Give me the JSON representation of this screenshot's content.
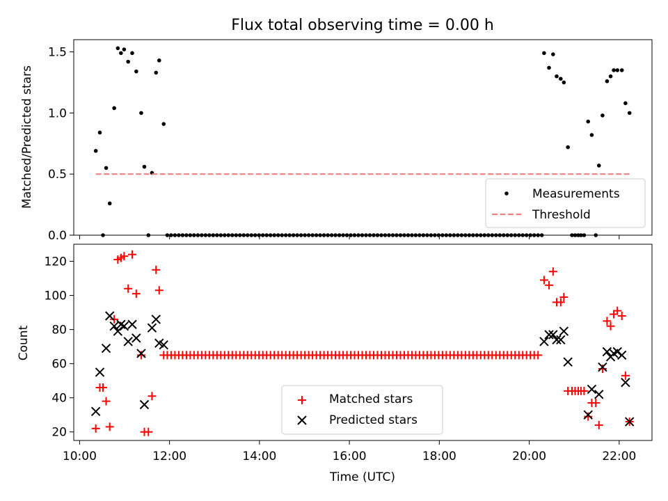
{
  "title": "Flux total observing time = 0.00 h",
  "x_axis": {
    "label": "Time (UTC)",
    "ticks": [
      {
        "hour": 10,
        "label": "10:00"
      },
      {
        "hour": 12,
        "label": "12:00"
      },
      {
        "hour": 14,
        "label": "14:00"
      },
      {
        "hour": 16,
        "label": "16:00"
      },
      {
        "hour": 18,
        "label": "18:00"
      },
      {
        "hour": 20,
        "label": "20:00"
      },
      {
        "hour": 22,
        "label": "22:00"
      }
    ]
  },
  "chart_data": [
    {
      "type": "scatter",
      "ylabel": "Matched/Predicted stars",
      "xlim_hours": [
        9.87,
        22.73
      ],
      "ylim": [
        0,
        1.6
      ],
      "yticks": [
        {
          "value": 0.0,
          "label": "0.0"
        },
        {
          "value": 0.5,
          "label": "0.5"
        },
        {
          "value": 1.0,
          "label": "1.0"
        },
        {
          "value": 1.5,
          "label": "1.5"
        }
      ],
      "legend": {
        "placement": "lower-right",
        "entries": [
          "Measurements",
          "Threshold"
        ]
      },
      "series": [
        {
          "name": "Measurements",
          "marker": "dot",
          "color": "#000000",
          "points": [
            [
              10.36,
              0.69
            ],
            [
              10.45,
              0.84
            ],
            [
              10.52,
              0.0
            ],
            [
              10.59,
              0.55
            ],
            [
              10.67,
              0.26
            ],
            [
              10.77,
              1.04
            ],
            [
              10.85,
              1.53
            ],
            [
              10.92,
              1.49
            ],
            [
              10.99,
              1.52
            ],
            [
              11.08,
              1.42
            ],
            [
              11.17,
              1.49
            ],
            [
              11.26,
              1.34
            ],
            [
              11.37,
              1.0
            ],
            [
              11.44,
              0.56
            ],
            [
              11.53,
              0.0
            ],
            [
              11.61,
              0.51
            ],
            [
              11.7,
              1.33
            ],
            [
              11.77,
              1.43
            ],
            [
              11.87,
              0.91
            ],
            [
              20.33,
              1.49
            ],
            [
              20.44,
              1.37
            ],
            [
              20.53,
              1.48
            ],
            [
              20.61,
              1.3
            ],
            [
              20.7,
              1.28
            ],
            [
              20.77,
              1.25
            ],
            [
              20.86,
              0.72
            ],
            [
              21.31,
              0.93
            ],
            [
              21.39,
              0.82
            ],
            [
              21.55,
              0.57
            ],
            [
              21.63,
              0.98
            ],
            [
              21.73,
              1.26
            ],
            [
              21.81,
              1.3
            ],
            [
              21.88,
              1.35
            ],
            [
              21.96,
              1.35
            ],
            [
              22.06,
              1.35
            ],
            [
              22.14,
              1.08
            ],
            [
              22.23,
              1.0
            ]
          ],
          "zero_span_hours": [
            11.95,
            20.35
          ],
          "zero_step_hours": 0.085,
          "zero_extra_hours": [
            20.95,
            21.02,
            21.09,
            21.15,
            21.22,
            21.48
          ]
        },
        {
          "name": "Threshold",
          "style": "dashed",
          "color": "#f08080",
          "x_range_hours": [
            10.36,
            22.23
          ],
          "value": 0.5
        }
      ]
    },
    {
      "type": "scatter",
      "ylabel": "Count",
      "xlim_hours": [
        9.87,
        22.73
      ],
      "ylim": [
        15,
        130
      ],
      "yticks": [
        {
          "value": 20,
          "label": "20"
        },
        {
          "value": 40,
          "label": "40"
        },
        {
          "value": 60,
          "label": "60"
        },
        {
          "value": 80,
          "label": "80"
        },
        {
          "value": 100,
          "label": "100"
        },
        {
          "value": 120,
          "label": "120"
        }
      ],
      "legend": {
        "placement": "lower-center",
        "entries": [
          "Matched stars",
          "Predicted stars"
        ]
      },
      "series": [
        {
          "name": "Matched stars",
          "marker": "plus",
          "color": "#ff0000",
          "points": [
            [
              10.36,
              22
            ],
            [
              10.45,
              46
            ],
            [
              10.52,
              46
            ],
            [
              10.59,
              38
            ],
            [
              10.67,
              23
            ],
            [
              10.77,
              86
            ],
            [
              10.85,
              121
            ],
            [
              10.92,
              122
            ],
            [
              10.99,
              123
            ],
            [
              11.08,
              104
            ],
            [
              11.17,
              124
            ],
            [
              11.26,
              101
            ],
            [
              11.37,
              65
            ],
            [
              11.44,
              20
            ],
            [
              11.53,
              20
            ],
            [
              11.61,
              41
            ],
            [
              11.7,
              115
            ],
            [
              11.77,
              103
            ],
            [
              11.87,
              65
            ],
            [
              20.33,
              109
            ],
            [
              20.44,
              106
            ],
            [
              20.53,
              114
            ],
            [
              20.61,
              96
            ],
            [
              20.7,
              96
            ],
            [
              20.77,
              99
            ],
            [
              20.86,
              44
            ],
            [
              20.95,
              44
            ],
            [
              21.02,
              44
            ],
            [
              21.09,
              44
            ],
            [
              21.15,
              44
            ],
            [
              21.22,
              44
            ],
            [
              21.31,
              29
            ],
            [
              21.39,
              37
            ],
            [
              21.48,
              37
            ],
            [
              21.55,
              24
            ],
            [
              21.63,
              57
            ],
            [
              21.73,
              85
            ],
            [
              21.81,
              82
            ],
            [
              21.88,
              89
            ],
            [
              21.96,
              91
            ],
            [
              22.06,
              88
            ],
            [
              22.14,
              53
            ],
            [
              22.23,
              26
            ]
          ],
          "constant_span_hours": [
            11.95,
            20.25
          ],
          "constant_step_hours": 0.085,
          "constant_value": 65
        },
        {
          "name": "Predicted stars",
          "marker": "x",
          "color": "#000000",
          "points": [
            [
              10.36,
              32
            ],
            [
              10.45,
              55
            ],
            [
              10.59,
              69
            ],
            [
              10.67,
              88
            ],
            [
              10.77,
              82
            ],
            [
              10.85,
              79
            ],
            [
              10.92,
              83
            ],
            [
              10.99,
              82
            ],
            [
              11.08,
              73
            ],
            [
              11.17,
              83
            ],
            [
              11.26,
              75
            ],
            [
              11.37,
              66
            ],
            [
              11.44,
              36
            ],
            [
              11.61,
              81
            ],
            [
              11.7,
              86
            ],
            [
              11.77,
              72
            ],
            [
              11.87,
              71
            ],
            [
              20.33,
              73
            ],
            [
              20.44,
              77
            ],
            [
              20.53,
              77
            ],
            [
              20.61,
              74
            ],
            [
              20.7,
              74
            ],
            [
              20.77,
              79
            ],
            [
              20.86,
              61
            ],
            [
              21.31,
              30
            ],
            [
              21.39,
              45
            ],
            [
              21.55,
              42
            ],
            [
              21.63,
              58
            ],
            [
              21.73,
              67
            ],
            [
              21.81,
              64
            ],
            [
              21.88,
              66
            ],
            [
              21.96,
              67
            ],
            [
              22.06,
              65
            ],
            [
              22.14,
              49
            ],
            [
              22.23,
              26
            ]
          ]
        }
      ]
    }
  ]
}
